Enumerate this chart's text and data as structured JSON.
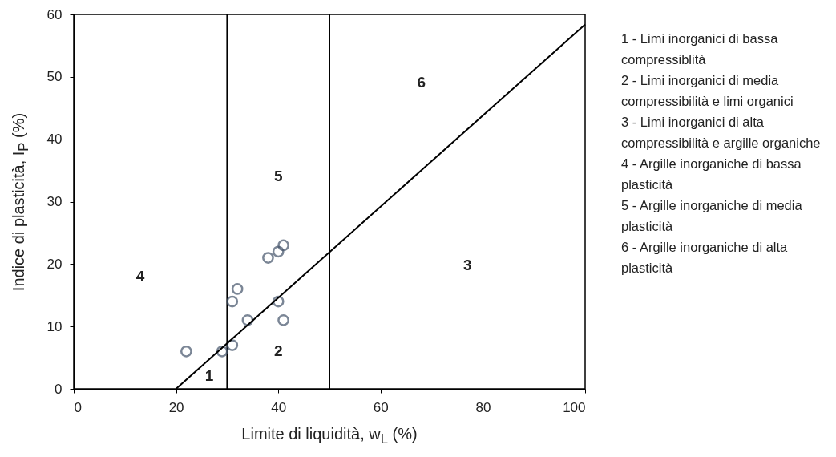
{
  "chart_data": {
    "type": "scatter",
    "xlabel": "Limite di liquidità, w$_{L}$ (%)",
    "ylabel": "Indice di plasticità, I$_{P}$ (%)",
    "xlim": [
      0,
      100
    ],
    "xticks": [
      0,
      20,
      40,
      60,
      80,
      100
    ],
    "ylim": [
      0,
      60
    ],
    "yticks": [
      0,
      10,
      20,
      30,
      40,
      50,
      60
    ],
    "grid": false,
    "series": [
      {
        "type": "scatter",
        "color": "#44546a",
        "marker": "circle",
        "x": [
          22,
          29,
          31,
          31,
          32,
          34,
          38,
          40,
          41,
          40,
          41
        ],
        "values": [
          6,
          6,
          7,
          14,
          16,
          11,
          21,
          22,
          23,
          14,
          11
        ]
      },
      {
        "type": "line",
        "color": "#000000",
        "marker": "none",
        "x": [
          20,
          100
        ],
        "values": [
          0,
          58.4
        ]
      }
    ],
    "ref_lines": [
      {
        "axis": "x",
        "value": 30
      },
      {
        "axis": "x",
        "value": 50
      }
    ],
    "annotations": [
      "1",
      "2",
      "3",
      "4",
      "5",
      "6",
      "1 - Limi inorganici di bassa compressiblità",
      "2 - Limi inorganici di media compressibilità e limi organici",
      "3 - Limi inorganici di alta compressibilità e argille organiche",
      "4 - Argille inorganiche di bassa plasticità",
      "5 - Argille inorganiche di media plasticità",
      "6 - Argille inorganiche di alta plasticità"
    ]
  }
}
